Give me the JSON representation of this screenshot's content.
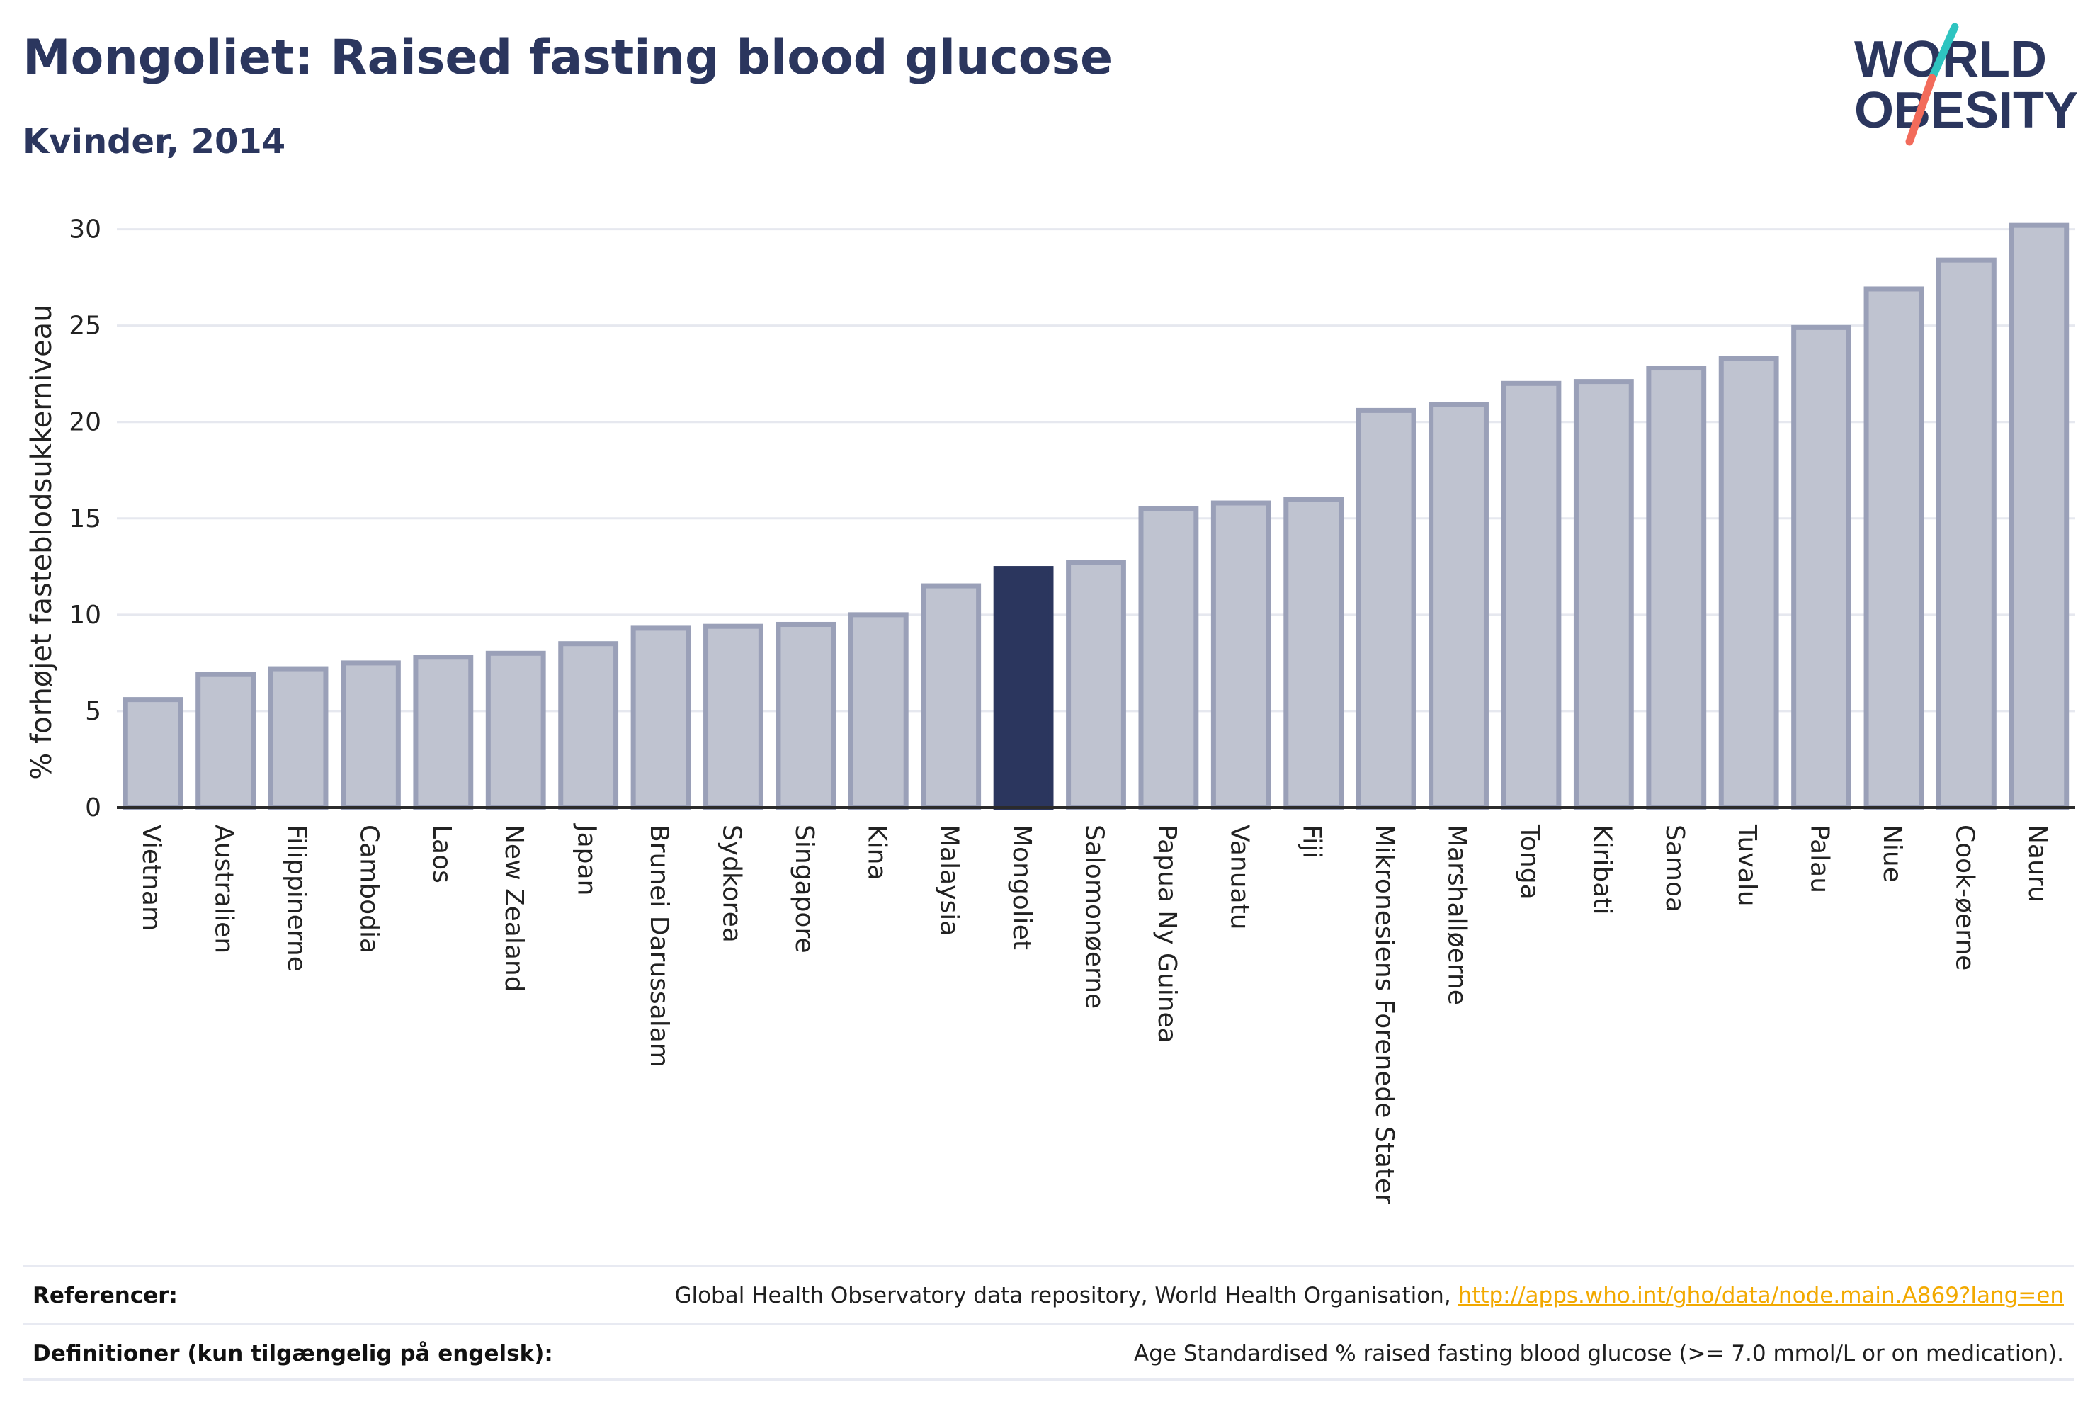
{
  "header": {
    "title": "Mongoliet: Raised fasting blood glucose",
    "subtitle": "Kvinder, 2014"
  },
  "logo": {
    "line1": "WORLD",
    "line2": "OBESITY",
    "colors": {
      "text": "#2b365e",
      "slash_top": "#2ec4c0",
      "slash_bottom": "#f26b5b"
    }
  },
  "chart_data": {
    "type": "bar",
    "ylabel": "% forhøjet fasteblodsukkerniveau",
    "xlabel": "",
    "ylim": [
      0,
      30.5
    ],
    "yticks": [
      0,
      5,
      10,
      15,
      20,
      25,
      30
    ],
    "grid": true,
    "highlight": "Mongoliet",
    "colors": {
      "bar": "#bfc3d0",
      "bar_edge": "#9aa0b8",
      "highlight": "#2b365e",
      "axis": "#2b2b2b",
      "grid": "#e6e8ef"
    },
    "categories": [
      "Vietnam",
      "Australien",
      "Filippinerne",
      "Cambodia",
      "Laos",
      "New Zealand",
      "Japan",
      "Brunei Darussalam",
      "Sydkorea",
      "Singapore",
      "Kina",
      "Malaysia",
      "Mongoliet",
      "Salomonøerne",
      "Papua Ny Guinea",
      "Vanuatu",
      "Fiji",
      "Mikronesiens Forenede Stater",
      "Marshalløerne",
      "Tonga",
      "Kiribati",
      "Samoa",
      "Tuvalu",
      "Palau",
      "Niue",
      "Cook-øerne",
      "Nauru"
    ],
    "values": [
      5.6,
      6.9,
      7.2,
      7.5,
      7.8,
      8.0,
      8.5,
      9.3,
      9.4,
      9.5,
      10.0,
      11.5,
      12.4,
      12.7,
      15.5,
      15.8,
      16.0,
      20.6,
      20.9,
      22.0,
      22.1,
      22.8,
      23.3,
      24.9,
      26.9,
      28.4,
      30.2
    ]
  },
  "footer": {
    "references_label": "Referencer:",
    "references_text": "Global Health Observatory data repository, World Health Organisation, ",
    "references_link": "http://apps.who.int/gho/data/node.main.A869?lang=en",
    "definitions_label": "Definitioner (kun tilgængelig på engelsk):",
    "definitions_text": "Age Standardised % raised fasting blood glucose (>= 7.0 mmol/L or on medication)."
  }
}
